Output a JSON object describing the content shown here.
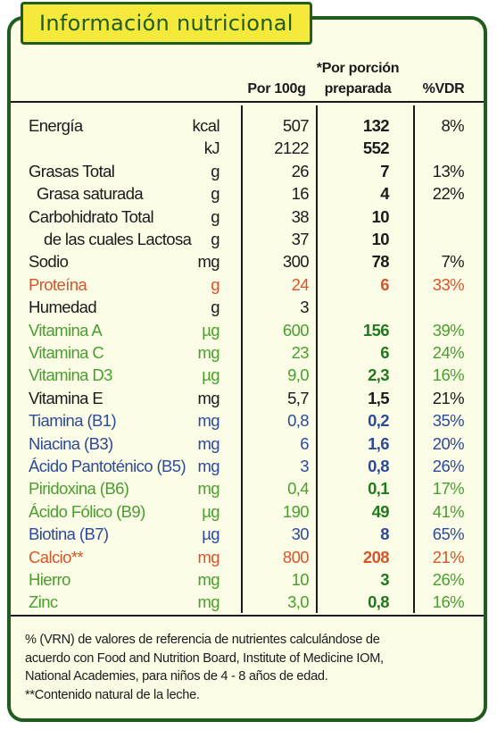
{
  "title": "Información nutricional",
  "headers": {
    "per100": "Por 100g",
    "portion_line1": "*Por porción",
    "portion_line2": "preparada",
    "vdr": "%VDR"
  },
  "colors": {
    "black": "#1b1b1b",
    "red": "#d8552a",
    "green": "#4a9e2f",
    "blue": "#2e4a9a",
    "bold_green": "#1f7a1e",
    "brand_dark_green": "#1f5c1e",
    "title_yellow": "#f5ea3b",
    "panel_background": "#fbfde6"
  },
  "rows": [
    {
      "name": "Energía",
      "unit": "kcal",
      "per100": "507",
      "portion": "132",
      "vdr": "8%",
      "color": "black"
    },
    {
      "name": "",
      "unit": "kJ",
      "per100": "2122",
      "portion": "552",
      "vdr": "",
      "color": "black"
    },
    {
      "name": "Grasas Total",
      "unit": "g",
      "per100": "26",
      "portion": "7",
      "vdr": "13%",
      "color": "black"
    },
    {
      "name": "Grasa saturada",
      "unit": "g",
      "per100": "16",
      "portion": "4",
      "vdr": "22%",
      "color": "black",
      "indent": true
    },
    {
      "name": "Carbohidrato Total",
      "unit": "g",
      "per100": "38",
      "portion": "10",
      "vdr": "",
      "color": "black"
    },
    {
      "name": "de las cuales Lactosa",
      "unit": "g",
      "per100": "37",
      "portion": "10",
      "vdr": "",
      "color": "black",
      "indent": true
    },
    {
      "name": "Sodio",
      "unit": "mg",
      "per100": "300",
      "portion": "78",
      "vdr": "7%",
      "color": "black"
    },
    {
      "name": "Proteína",
      "unit": "g",
      "per100": "24",
      "portion": "6",
      "vdr": "33%",
      "color": "red"
    },
    {
      "name": "Humedad",
      "unit": "g",
      "per100": "3",
      "portion": "",
      "vdr": "",
      "color": "black"
    },
    {
      "name": "Vitamina A",
      "unit": "µg",
      "per100": "600",
      "portion": "156",
      "vdr": "39%",
      "color": "green"
    },
    {
      "name": "Vitamina C",
      "unit": "mg",
      "per100": "23",
      "portion": "6",
      "vdr": "24%",
      "color": "green"
    },
    {
      "name": "Vitamina D3",
      "unit": "µg",
      "per100": "9,0",
      "portion": "2,3",
      "vdr": "16%",
      "color": "green"
    },
    {
      "name": "Vitamina E",
      "unit": "mg",
      "per100": "5,7",
      "portion": "1,5",
      "vdr": "21%",
      "color": "black"
    },
    {
      "name": "Tiamina (B1)",
      "unit": "mg",
      "per100": "0,8",
      "portion": "0,2",
      "vdr": "35%",
      "color": "blue"
    },
    {
      "name": "Niacina (B3)",
      "unit": "mg",
      "per100": "6",
      "portion": "1,6",
      "vdr": "20%",
      "color": "blue"
    },
    {
      "name": "Ácido Pantoténico (B5)",
      "unit": "mg",
      "per100": "3",
      "portion": "0,8",
      "vdr": "26%",
      "color": "blue"
    },
    {
      "name": "Piridoxina (B6)",
      "unit": "mg",
      "per100": "0,4",
      "portion": "0,1",
      "vdr": "17%",
      "color": "green"
    },
    {
      "name": "Ácido Fólico (B9)",
      "unit": "µg",
      "per100": "190",
      "portion": "49",
      "vdr": "41%",
      "color": "green"
    },
    {
      "name": "Biotina (B7)",
      "unit": "µg",
      "per100": "30",
      "portion": "8",
      "vdr": "65%",
      "color": "blue"
    },
    {
      "name": "Calcio**",
      "unit": "mg",
      "per100": "800",
      "portion": "208",
      "vdr": "21%",
      "color": "red"
    },
    {
      "name": "Hierro",
      "unit": "mg",
      "per100": "10",
      "portion": "3",
      "vdr": "26%",
      "color": "green"
    },
    {
      "name": "Zinc",
      "unit": "mg",
      "per100": "3,0",
      "portion": "0,8",
      "vdr": "16%",
      "color": "green"
    }
  ],
  "footnote": {
    "line1": "% (VRN) de valores de referencia de nutrientes calculándose de",
    "line2": "acuerdo con Food and Nutrition Board, Institute of Medicine IOM,",
    "line3": "National Academies, para niños de 4 - 8 años de edad.",
    "line4": "**Contenido natural de la leche."
  }
}
